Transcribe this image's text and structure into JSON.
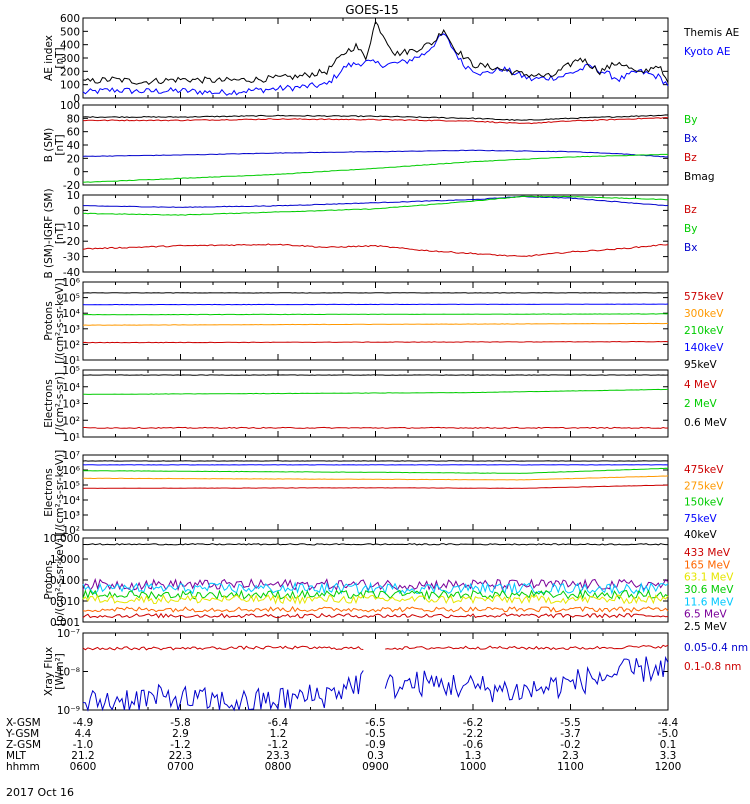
{
  "title": "GOES-15",
  "date_label": "2017 Oct 16",
  "orbit_rows": [
    {
      "label": "X-GSM",
      "values": [
        "-4.9",
        "-5.8",
        "-6.4",
        "-6.5",
        "-6.2",
        "-5.5",
        "-4.4"
      ]
    },
    {
      "label": "Y-GSM",
      "values": [
        "4.4",
        "2.9",
        "1.2",
        "-0.5",
        "-2.2",
        "-3.7",
        "-5.0"
      ]
    },
    {
      "label": "Z-GSM",
      "values": [
        "-1.0",
        "-1.2",
        "-1.2",
        "-0.9",
        "-0.6",
        "-0.2",
        "0.1"
      ]
    },
    {
      "label": "MLT",
      "values": [
        "21.2",
        "22.3",
        "23.3",
        "0.3",
        "1.3",
        "2.3",
        "3.3"
      ]
    },
    {
      "label": "hhmm",
      "values": [
        "0600",
        "0700",
        "0800",
        "0900",
        "1000",
        "1100",
        "1200"
      ]
    }
  ],
  "chart_data": [
    {
      "id": "ae",
      "type": "line",
      "ylabel": "AE index\n[nT]",
      "ylim": [
        0,
        600
      ],
      "scale": "linear",
      "ticks": [
        "0",
        "100",
        "200",
        "300",
        "400",
        "500",
        "600"
      ],
      "tick_values": [
        0,
        100,
        200,
        300,
        400,
        500,
        600
      ],
      "x_hours": [
        6,
        12
      ],
      "series": [
        {
          "name": "Kyoto AE",
          "color": "#0000ff",
          "noise": 4,
          "x": [
            6.0,
            6.3,
            6.6,
            7.0,
            7.4,
            7.8,
            8.2,
            8.5,
            8.7,
            8.9,
            9.1,
            9.3,
            9.5,
            9.7,
            9.9,
            10.1,
            10.3,
            10.6,
            10.9,
            11.2,
            11.5,
            11.7,
            11.9,
            12.0
          ],
          "y": [
            40,
            60,
            50,
            55,
            40,
            60,
            80,
            100,
            240,
            270,
            250,
            270,
            330,
            480,
            250,
            180,
            220,
            140,
            160,
            240,
            140,
            200,
            160,
            100
          ]
        },
        {
          "name": "Themis AE",
          "color": "#000000",
          "noise": 4,
          "x": [
            6.0,
            6.3,
            6.6,
            7.0,
            7.4,
            7.8,
            8.2,
            8.5,
            8.7,
            8.8,
            8.9,
            9.0,
            9.2,
            9.4,
            9.6,
            9.7,
            9.8,
            10.0,
            10.2,
            10.5,
            10.8,
            11.1,
            11.3,
            11.5,
            11.7,
            11.9,
            12.0
          ],
          "y": [
            120,
            140,
            120,
            140,
            130,
            140,
            160,
            200,
            350,
            390,
            300,
            570,
            330,
            360,
            420,
            520,
            380,
            250,
            230,
            180,
            160,
            300,
            200,
            270,
            180,
            250,
            100
          ]
        }
      ]
    },
    {
      "id": "bsm",
      "type": "line",
      "ylabel": "B (SM)\n[nT]",
      "ylim": [
        -20,
        100
      ],
      "scale": "linear",
      "ticks": [
        "-20",
        "0",
        "20",
        "40",
        "60",
        "80",
        "100"
      ],
      "tick_values": [
        -20,
        0,
        20,
        40,
        60,
        80,
        100
      ],
      "series": [
        {
          "name": "Bmag",
          "color": "#000000",
          "noise": 0.6,
          "x": [
            6,
            7,
            8,
            9,
            10,
            10.5,
            11,
            12
          ],
          "y": [
            82,
            82,
            84,
            83,
            80,
            77,
            80,
            85
          ]
        },
        {
          "name": "Bz",
          "color": "#cc0000",
          "noise": 0.6,
          "x": [
            6,
            7,
            8,
            9,
            10,
            10.5,
            11,
            12
          ],
          "y": [
            77,
            77,
            79,
            78,
            76,
            72,
            76,
            81
          ]
        },
        {
          "name": "Bx",
          "color": "#0000cc",
          "noise": 0.3,
          "x": [
            6,
            7,
            8,
            9,
            10,
            11,
            11.5,
            12
          ],
          "y": [
            23,
            25,
            28,
            30,
            32,
            30,
            27,
            22
          ]
        },
        {
          "name": "By",
          "color": "#00cc00",
          "noise": 0.3,
          "x": [
            6,
            7,
            8,
            9,
            10,
            11,
            12
          ],
          "y": [
            -16,
            -10,
            -4,
            5,
            15,
            22,
            26
          ]
        }
      ]
    },
    {
      "id": "bdiff",
      "type": "line",
      "ylabel": "B (SM)-IGRF (SM)\n[nT]",
      "ylim": [
        -40,
        10
      ],
      "scale": "linear",
      "ticks": [
        "-40",
        "-30",
        "-20",
        "-10",
        "0",
        "10"
      ],
      "tick_values": [
        -40,
        -30,
        -20,
        -10,
        0,
        10
      ],
      "series": [
        {
          "name": "Bx",
          "color": "#0000cc",
          "noise": 0.4,
          "x": [
            6,
            7,
            8,
            9,
            10,
            10.5,
            11,
            12
          ],
          "y": [
            3,
            2,
            3,
            5,
            7,
            9,
            8,
            3
          ]
        },
        {
          "name": "By",
          "color": "#00cc00",
          "noise": 0.4,
          "x": [
            6,
            7,
            8,
            9,
            10,
            10.5,
            11,
            12
          ],
          "y": [
            -2,
            -3,
            -1,
            1,
            6,
            9,
            9,
            7
          ]
        },
        {
          "name": "Bz",
          "color": "#cc0000",
          "noise": 0.8,
          "x": [
            6,
            7,
            8,
            8.5,
            9,
            9.5,
            10,
            10.5,
            11,
            11.5,
            12
          ],
          "y": [
            -25,
            -23,
            -22,
            -24,
            -23,
            -26,
            -28,
            -30,
            -27,
            -25,
            -22
          ]
        }
      ]
    },
    {
      "id": "protons_mag",
      "type": "line",
      "ylabel": "Protons\n[/(cm²-s-sr-keV)]",
      "ylim": [
        10,
        1000000
      ],
      "scale": "log",
      "ticks": [
        "10¹",
        "10²",
        "10³",
        "10⁴",
        "10⁵",
        "10⁶"
      ],
      "tick_values": [
        10,
        100,
        1000,
        10000,
        100000,
        1000000
      ],
      "series": [
        {
          "name": "95keV",
          "color": "#000000",
          "noise": 0.01,
          "x": [
            6,
            12
          ],
          "y": [
            200000,
            200000
          ]
        },
        {
          "name": "140keV",
          "color": "#0000ff",
          "noise": 0.01,
          "x": [
            6,
            12
          ],
          "y": [
            35000,
            38000
          ]
        },
        {
          "name": "210keV",
          "color": "#00cc00",
          "noise": 0.01,
          "x": [
            6,
            12
          ],
          "y": [
            8000,
            9000
          ]
        },
        {
          "name": "300keV",
          "color": "#ff9900",
          "noise": 0.01,
          "x": [
            6,
            12
          ],
          "y": [
            1700,
            2200
          ]
        },
        {
          "name": "575keV",
          "color": "#cc0000",
          "noise": 0.015,
          "x": [
            6,
            12
          ],
          "y": [
            130,
            150
          ]
        }
      ]
    },
    {
      "id": "electrons_mev",
      "type": "line",
      "ylabel": "Electrons\n[/(cm²-s-sr)]",
      "ylim": [
        10,
        100000
      ],
      "scale": "log",
      "ticks": [
        "10¹",
        "10²",
        "10³",
        "10⁴",
        "10⁵"
      ],
      "tick_values": [
        10,
        100,
        1000,
        10000,
        100000
      ],
      "series": [
        {
          "name": "0.6 MeV",
          "color": "#000000",
          "noise": 0.01,
          "x": [
            6,
            12
          ],
          "y": [
            50000,
            50000
          ]
        },
        {
          "name": "2 MeV",
          "color": "#00cc00",
          "noise": 0.01,
          "x": [
            6,
            10,
            12
          ],
          "y": [
            3500,
            4500,
            7000
          ]
        },
        {
          "name": "4 MeV",
          "color": "#cc0000",
          "noise": 0.03,
          "x": [
            6,
            12
          ],
          "y": [
            35,
            35
          ]
        }
      ]
    },
    {
      "id": "electrons_kev",
      "type": "line",
      "ylabel": "Electrons\n[/(cm²-s-sr-keV)]",
      "ylim": [
        100,
        10000000
      ],
      "scale": "log",
      "ticks": [
        "10²",
        "10³",
        "10⁴",
        "10⁵",
        "10⁶",
        "10⁷"
      ],
      "tick_values": [
        100,
        1000,
        10000,
        100000,
        1000000,
        10000000
      ],
      "series": [
        {
          "name": "40keV",
          "color": "#000000",
          "noise": 0.01,
          "x": [
            6,
            12
          ],
          "y": [
            4000000,
            4000000
          ]
        },
        {
          "name": "75keV",
          "color": "#0000ff",
          "noise": 0.01,
          "x": [
            6,
            12
          ],
          "y": [
            2200000,
            2200000
          ]
        },
        {
          "name": "150keV",
          "color": "#00cc00",
          "noise": 0.01,
          "x": [
            6,
            9,
            10.5,
            12
          ],
          "y": [
            900000,
            700000,
            600000,
            1300000
          ]
        },
        {
          "name": "275keV",
          "color": "#ff9900",
          "noise": 0.01,
          "x": [
            6,
            9,
            10.5,
            12
          ],
          "y": [
            280000,
            240000,
            220000,
            400000
          ]
        },
        {
          "name": "475keV",
          "color": "#cc0000",
          "noise": 0.01,
          "x": [
            6,
            9,
            10.5,
            12
          ],
          "y": [
            60000,
            65000,
            60000,
            100000
          ]
        }
      ]
    },
    {
      "id": "protons_mev",
      "type": "line",
      "ylabel": "Protons\n[p/(cm²-s-sr-keV)]",
      "ylim": [
        0.001,
        10
      ],
      "scale": "log",
      "ticks": [
        "0.001",
        "0.010",
        "0.100",
        "1.000",
        "10.000"
      ],
      "tick_values": [
        0.001,
        0.01,
        0.1,
        1,
        10
      ],
      "series": [
        {
          "name": "2.5 MeV",
          "color": "#000000",
          "noise": 0.03,
          "x": [
            6,
            12
          ],
          "y": [
            5,
            5
          ]
        },
        {
          "name": "6.5 MeV",
          "color": "#7a0099",
          "noise": 0.25,
          "x": [
            6,
            12
          ],
          "y": [
            0.06,
            0.06
          ]
        },
        {
          "name": "11.6 MeV",
          "color": "#00c8ff",
          "noise": 0.25,
          "x": [
            6,
            12
          ],
          "y": [
            0.04,
            0.04
          ]
        },
        {
          "name": "30.6 MeV",
          "color": "#00cc00",
          "noise": 0.2,
          "x": [
            6,
            12
          ],
          "y": [
            0.02,
            0.02
          ]
        },
        {
          "name": "63.1 MeV",
          "color": "#e6e600",
          "noise": 0.2,
          "x": [
            6,
            12
          ],
          "y": [
            0.012,
            0.012
          ]
        },
        {
          "name": "165 MeV",
          "color": "#ff6600",
          "noise": 0.12,
          "x": [
            6,
            12
          ],
          "y": [
            0.004,
            0.004
          ]
        },
        {
          "name": "433 MeV",
          "color": "#cc0000",
          "noise": 0.1,
          "x": [
            6,
            12
          ],
          "y": [
            0.002,
            0.002
          ]
        }
      ]
    },
    {
      "id": "xray",
      "type": "line",
      "ylabel": "Xray Flux\n[W/m²]",
      "ylim": [
        1e-09,
        1e-07
      ],
      "scale": "log",
      "ticks": [
        "10⁻⁹",
        "10⁻⁸",
        "10⁻⁷"
      ],
      "tick_values": [
        1e-09,
        1e-08,
        1e-07
      ],
      "series": [
        {
          "name": "0.1-0.8 nm",
          "color": "#cc0000",
          "noise": 0.04,
          "gaps": [
            [
              8.88,
              9.1
            ]
          ],
          "x": [
            6,
            7,
            8,
            8.88,
            9.1,
            10,
            11,
            12
          ],
          "y": [
            4e-08,
            4e-08,
            4.2e-08,
            4e-08,
            4e-08,
            4.2e-08,
            4e-08,
            4.5e-08
          ]
        },
        {
          "name": "0.05-0.4 nm",
          "color": "#0000cc",
          "noise": 0.35,
          "gaps": [
            [
              8.88,
              9.1
            ]
          ],
          "x": [
            6,
            6.5,
            7,
            7.5,
            8,
            8.5,
            8.88,
            9.1,
            9.5,
            10,
            10.5,
            11,
            11.5,
            12
          ],
          "y": [
            1.5e-09,
            2e-09,
            2e-09,
            1.5e-09,
            1.8e-09,
            2.5e-09,
            6e-09,
            4e-09,
            5e-09,
            4e-09,
            3e-09,
            5e-09,
            9e-09,
            1.4e-08
          ]
        }
      ]
    }
  ]
}
